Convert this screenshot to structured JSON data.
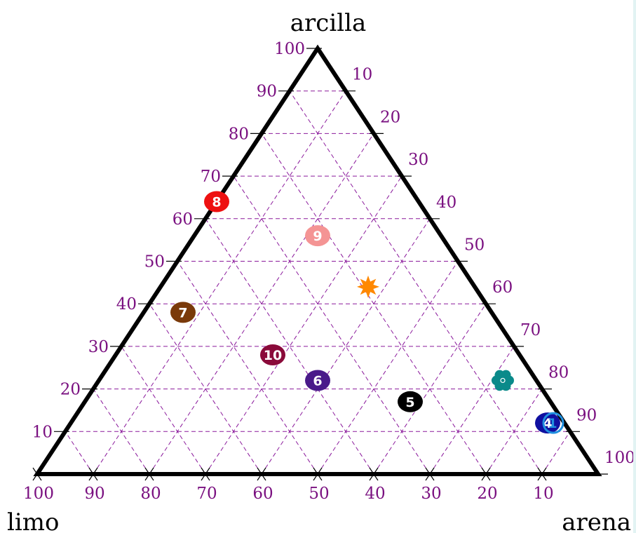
{
  "chart_data": {
    "type": "scatter",
    "subtype": "ternary",
    "title": "",
    "axes": {
      "top": "arcilla",
      "bottom_left": "limo",
      "bottom_right": "arena"
    },
    "tick_values": [
      10,
      20,
      30,
      40,
      50,
      60,
      70,
      80,
      90,
      100
    ],
    "clay_tick_labels": [
      "10",
      "20",
      "30",
      "40",
      "50",
      "60",
      "70",
      "80",
      "90",
      "100"
    ],
    "sand_tick_labels": [
      "10",
      "20",
      "30",
      "40",
      "50",
      "60",
      "70",
      "80",
      "90",
      "100"
    ],
    "silt_tick_labels": [
      "10",
      "20",
      "30",
      "40",
      "50",
      "60",
      "70",
      "80",
      "90",
      "100"
    ],
    "grid": true,
    "colors": {
      "frame": "#000000",
      "grid": "#8b1a9c",
      "tick_text": "#7a1080"
    },
    "points": [
      {
        "label": "4",
        "clay": 12,
        "sand": 85,
        "silt": 3,
        "marker": "circle",
        "color": "#1010a0",
        "text_color": "#ffffff"
      },
      {
        "label": "5",
        "clay": 17,
        "sand": 58,
        "silt": 25,
        "marker": "circle",
        "color": "#000000",
        "text_color": "#ffffff"
      },
      {
        "label": "6",
        "clay": 22,
        "sand": 39,
        "silt": 39,
        "marker": "circle",
        "color": "#4a1a8a",
        "text_color": "#ffffff"
      },
      {
        "label": "7",
        "clay": 38,
        "sand": 7,
        "silt": 55,
        "marker": "circle",
        "color": "#7a3a0a",
        "text_color": "#ffffff"
      },
      {
        "label": "8",
        "clay": 64,
        "sand": 0,
        "silt": 36,
        "marker": "circle",
        "color": "#ee1111",
        "text_color": "#ffffff"
      },
      {
        "label": "9",
        "clay": 56,
        "sand": 22,
        "silt": 22,
        "marker": "circle",
        "color": "#f49494",
        "text_color": "#ffffff"
      },
      {
        "label": "10",
        "clay": 28,
        "sand": 28,
        "silt": 44,
        "marker": "circle",
        "color": "#8a0a3a",
        "text_color": "#ffffff"
      },
      {
        "label": "1",
        "clay": 12,
        "sand": 86,
        "silt": 2,
        "marker": "ring",
        "color": "#2090e0",
        "text_color": "#2090e0"
      },
      {
        "label": "",
        "clay": 44,
        "sand": 37,
        "silt": 19,
        "marker": "star",
        "color": "#ff8800",
        "text_color": ""
      },
      {
        "label": "",
        "clay": 22,
        "sand": 72,
        "silt": 6,
        "marker": "flower",
        "color": "#0a8a8a",
        "text_color": ""
      }
    ]
  }
}
